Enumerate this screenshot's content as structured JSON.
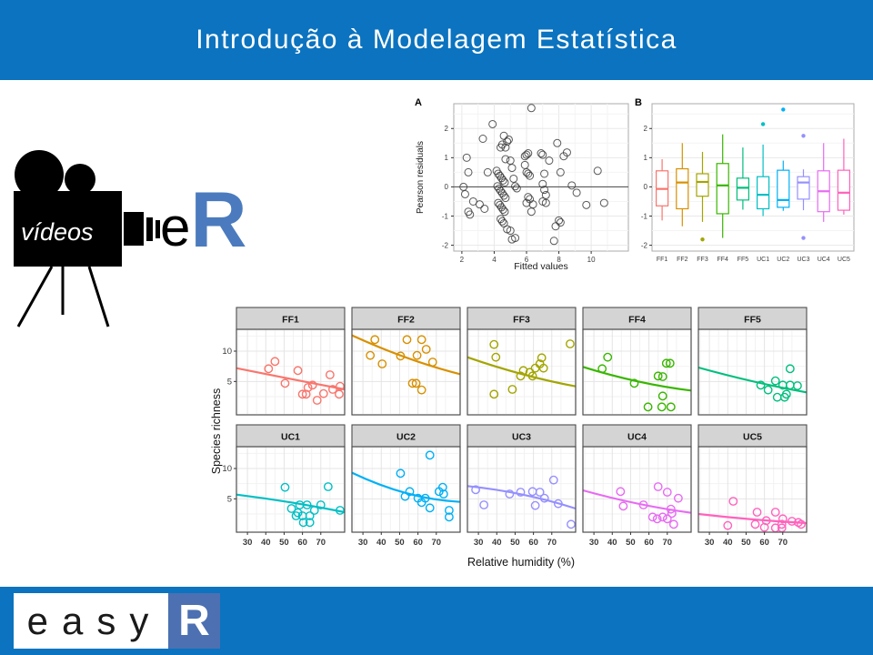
{
  "header": {
    "title": "Introdução à Modelagem Estatística"
  },
  "camera_logo": {
    "label": "vídeos"
  },
  "er_logo": {
    "e": "e",
    "r": "R"
  },
  "easyr_logo": {
    "letters": "easy",
    "r": "R"
  },
  "colors": {
    "band_blue": "#0B73BF",
    "er_r_blue": "#4B7BBE",
    "easyr_box_blue": "#4C70B2",
    "palette": [
      "#F8766D",
      "#D89000",
      "#A3A500",
      "#39B600",
      "#00BF7D",
      "#00BFC4",
      "#00B0F6",
      "#9590FF",
      "#E76BF3",
      "#FF62BC"
    ]
  },
  "chart_data": [
    {
      "id": "residuals_scatter",
      "type": "scatter",
      "panel_tag": "A",
      "xlabel": "Fitted values",
      "ylabel": "Pearson residuals",
      "xlim": [
        1.5,
        12.3
      ],
      "ylim": [
        -2.2,
        2.85
      ],
      "xticks": [
        2,
        4,
        6,
        8,
        10
      ],
      "yticks": [
        -2,
        -1,
        0,
        1,
        2
      ],
      "hline": 0,
      "point_color": "#3c3c3c",
      "grid": true,
      "points": [
        [
          2.1,
          0.0
        ],
        [
          2.2,
          -0.25
        ],
        [
          2.3,
          1.0
        ],
        [
          2.4,
          0.5
        ],
        [
          2.4,
          -0.85
        ],
        [
          2.5,
          -0.95
        ],
        [
          2.7,
          -0.5
        ],
        [
          3.1,
          -0.6
        ],
        [
          3.3,
          1.65
        ],
        [
          3.4,
          -0.75
        ],
        [
          3.6,
          0.5
        ],
        [
          3.9,
          2.15
        ],
        [
          4.15,
          0.55
        ],
        [
          4.25,
          0.45
        ],
        [
          4.35,
          0.38
        ],
        [
          4.45,
          0.3
        ],
        [
          4.55,
          0.22
        ],
        [
          4.65,
          0.15
        ],
        [
          4.2,
          0.02
        ],
        [
          4.3,
          -0.06
        ],
        [
          4.4,
          -0.14
        ],
        [
          4.5,
          -0.22
        ],
        [
          4.6,
          -0.3
        ],
        [
          4.7,
          -0.38
        ],
        [
          4.25,
          -0.55
        ],
        [
          4.35,
          -0.62
        ],
        [
          4.45,
          -0.7
        ],
        [
          4.55,
          -0.78
        ],
        [
          4.65,
          -0.85
        ],
        [
          4.4,
          -1.1
        ],
        [
          4.5,
          -1.18
        ],
        [
          4.6,
          -1.25
        ],
        [
          4.4,
          1.35
        ],
        [
          4.5,
          1.45
        ],
        [
          4.6,
          1.75
        ],
        [
          4.7,
          1.35
        ],
        [
          4.8,
          1.55
        ],
        [
          4.9,
          1.62
        ],
        [
          4.7,
          0.95
        ],
        [
          5.0,
          0.9
        ],
        [
          5.1,
          0.65
        ],
        [
          5.2,
          0.28
        ],
        [
          5.3,
          0.02
        ],
        [
          5.4,
          -0.05
        ],
        [
          4.8,
          -1.45
        ],
        [
          5.0,
          -1.5
        ],
        [
          5.1,
          -1.8
        ],
        [
          5.3,
          -1.75
        ],
        [
          5.9,
          1.05
        ],
        [
          6.0,
          1.1
        ],
        [
          6.1,
          1.15
        ],
        [
          5.9,
          0.75
        ],
        [
          6.0,
          0.5
        ],
        [
          6.1,
          0.45
        ],
        [
          6.2,
          0.38
        ],
        [
          6.3,
          2.7
        ],
        [
          6.1,
          -0.35
        ],
        [
          6.2,
          -0.42
        ],
        [
          6.0,
          -0.55
        ],
        [
          6.4,
          -0.6
        ],
        [
          6.3,
          -0.85
        ],
        [
          6.9,
          1.15
        ],
        [
          7.0,
          1.1
        ],
        [
          7.1,
          0.45
        ],
        [
          7.0,
          0.1
        ],
        [
          7.1,
          -0.1
        ],
        [
          7.2,
          -0.28
        ],
        [
          7.0,
          -0.5
        ],
        [
          7.2,
          -0.55
        ],
        [
          7.4,
          0.9
        ],
        [
          7.9,
          1.5
        ],
        [
          8.1,
          0.5
        ],
        [
          8.3,
          1.05
        ],
        [
          8.5,
          1.18
        ],
        [
          8.0,
          -1.15
        ],
        [
          8.1,
          -1.22
        ],
        [
          7.8,
          -1.35
        ],
        [
          7.7,
          -1.85
        ],
        [
          8.8,
          0.05
        ],
        [
          9.1,
          -0.2
        ],
        [
          9.7,
          -0.62
        ],
        [
          10.4,
          0.55
        ],
        [
          10.8,
          -0.55
        ]
      ]
    },
    {
      "id": "residuals_boxplot",
      "type": "boxplot",
      "panel_tag": "B",
      "ylim": [
        -2.2,
        2.85
      ],
      "yticks": [
        -2,
        -1,
        0,
        1,
        2
      ],
      "categories": [
        "FF1",
        "FF2",
        "FF3",
        "FF4",
        "FF5",
        "UC1",
        "UC2",
        "UC3",
        "UC4",
        "UC5"
      ],
      "colors": [
        "#F8766D",
        "#D89000",
        "#A3A500",
        "#39B600",
        "#00BF7D",
        "#00BFC4",
        "#00B0F6",
        "#9590FF",
        "#E76BF3",
        "#FF62BC"
      ],
      "boxes": [
        {
          "low": -1.15,
          "q1": -0.65,
          "median": -0.07,
          "q3": 0.55,
          "high": 0.95,
          "outliers": []
        },
        {
          "low": -1.35,
          "q1": -0.75,
          "median": 0.15,
          "q3": 0.62,
          "high": 1.5,
          "outliers": []
        },
        {
          "low": -1.2,
          "q1": -0.32,
          "median": 0.17,
          "q3": 0.45,
          "high": 1.2,
          "outliers": [
            -1.8
          ]
        },
        {
          "low": -1.75,
          "q1": -0.92,
          "median": 0.05,
          "q3": 0.8,
          "high": 1.8,
          "outliers": []
        },
        {
          "low": -0.78,
          "q1": -0.45,
          "median": -0.03,
          "q3": 0.3,
          "high": 1.35,
          "outliers": []
        },
        {
          "low": -1.0,
          "q1": -0.75,
          "median": -0.27,
          "q3": 0.35,
          "high": 1.45,
          "outliers": [
            2.15
          ]
        },
        {
          "low": -0.82,
          "q1": -0.7,
          "median": -0.45,
          "q3": 0.57,
          "high": 0.9,
          "outliers": [
            2.65
          ]
        },
        {
          "low": -0.8,
          "q1": -0.42,
          "median": 0.15,
          "q3": 0.35,
          "high": 0.6,
          "outliers": [
            1.75,
            -1.75
          ]
        },
        {
          "low": -1.2,
          "q1": -0.85,
          "median": -0.15,
          "q3": 0.55,
          "high": 1.5,
          "outliers": []
        },
        {
          "low": -0.95,
          "q1": -0.8,
          "median": -0.2,
          "q3": 0.57,
          "high": 1.65,
          "outliers": []
        }
      ]
    },
    {
      "id": "facet_scatter",
      "type": "facet-scatter",
      "xlabel": "Relative humidity (%)",
      "ylabel": "Species richness",
      "xlim": [
        24,
        83
      ],
      "ylim": [
        -0.5,
        13.6
      ],
      "xticks": [
        30,
        40,
        50,
        60,
        70
      ],
      "yticks": [
        5,
        10
      ],
      "facets": [
        {
          "label": "FF1",
          "color": "#F8766D",
          "points": [
            [
              41.5,
              7.1
            ],
            [
              45,
              8.3
            ],
            [
              50.5,
              4.7
            ],
            [
              57.5,
              6.8
            ],
            [
              60,
              2.9
            ],
            [
              62,
              2.9
            ],
            [
              63,
              4.0
            ],
            [
              65.5,
              4.4
            ],
            [
              68,
              1.9
            ],
            [
              71.5,
              3.0
            ],
            [
              75,
              6.1
            ],
            [
              76.5,
              3.7
            ],
            [
              80,
              2.9
            ],
            [
              80.5,
              4.2
            ]
          ],
          "trend": [
            [
              24,
              7.2
            ],
            [
              54,
              5.4
            ],
            [
              83,
              3.7
            ]
          ]
        },
        {
          "label": "FF2",
          "color": "#D89000",
          "points": [
            [
              34,
              9.3
            ],
            [
              36.5,
              11.9
            ],
            [
              40.5,
              7.9
            ],
            [
              50.5,
              9.2
            ],
            [
              54,
              11.9
            ],
            [
              57,
              4.7
            ],
            [
              59,
              4.7
            ],
            [
              59.5,
              9.3
            ],
            [
              62,
              11.9
            ],
            [
              62,
              3.6
            ],
            [
              64.5,
              10.3
            ],
            [
              68,
              8.2
            ]
          ],
          "trend": [
            [
              24,
              12.6
            ],
            [
              54,
              8.9
            ],
            [
              83,
              6.2
            ]
          ]
        },
        {
          "label": "FF3",
          "color": "#A3A500",
          "points": [
            [
              38.5,
              11.1
            ],
            [
              39.5,
              9.0
            ],
            [
              38.5,
              2.9
            ],
            [
              48.5,
              3.7
            ],
            [
              53,
              5.9
            ],
            [
              54.5,
              6.8
            ],
            [
              58,
              6.5
            ],
            [
              59.5,
              5.9
            ],
            [
              61,
              7.2
            ],
            [
              63.5,
              7.9
            ],
            [
              64.5,
              8.9
            ],
            [
              65.5,
              7.2
            ],
            [
              80,
              11.2
            ]
          ],
          "trend": [
            [
              24,
              9.0
            ],
            [
              54,
              6.2
            ],
            [
              83,
              4.2
            ]
          ]
        },
        {
          "label": "FF4",
          "color": "#39B600",
          "points": [
            [
              34.5,
              7.1
            ],
            [
              37.5,
              9.0
            ],
            [
              52,
              4.7
            ],
            [
              59.5,
              0.8
            ],
            [
              65,
              5.9
            ],
            [
              67.5,
              5.8
            ],
            [
              67,
              0.8
            ],
            [
              67.5,
              2.6
            ],
            [
              69.5,
              8.0
            ],
            [
              71.5,
              8.0
            ],
            [
              72,
              0.8
            ]
          ],
          "trend": [
            [
              24,
              7.4
            ],
            [
              54,
              5.0
            ],
            [
              83,
              3.5
            ]
          ]
        },
        {
          "label": "FF5",
          "color": "#00BF7D",
          "points": [
            [
              58,
              4.4
            ],
            [
              62,
              3.6
            ],
            [
              66,
              5.1
            ],
            [
              67,
              2.4
            ],
            [
              70,
              4.4
            ],
            [
              71,
              2.4
            ],
            [
              72,
              2.9
            ],
            [
              74,
              4.4
            ],
            [
              74,
              7.1
            ],
            [
              78,
              4.3
            ]
          ],
          "trend": [
            [
              24,
              7.3
            ],
            [
              54,
              5.0
            ],
            [
              83,
              3.2
            ]
          ]
        },
        {
          "label": "UC1",
          "color": "#00BFC4",
          "points": [
            [
              50.5,
              6.9
            ],
            [
              54,
              3.4
            ],
            [
              56.5,
              2.2
            ],
            [
              57.5,
              2.7
            ],
            [
              58.5,
              4.0
            ],
            [
              60,
              2.2
            ],
            [
              60.5,
              1.1
            ],
            [
              62.5,
              4.0
            ],
            [
              64,
              2.2
            ],
            [
              64,
              1.1
            ],
            [
              66.5,
              3.1
            ],
            [
              70,
              4.0
            ],
            [
              74,
              7.0
            ],
            [
              80.5,
              3.1
            ]
          ],
          "trend": [
            [
              24,
              5.7
            ],
            [
              54,
              4.4
            ],
            [
              83,
              2.8
            ]
          ]
        },
        {
          "label": "UC2",
          "color": "#00B0F6",
          "points": [
            [
              50.5,
              9.2
            ],
            [
              53,
              5.4
            ],
            [
              55.5,
              6.2
            ],
            [
              60,
              5.1
            ],
            [
              62,
              4.4
            ],
            [
              64,
              5.1
            ],
            [
              66.5,
              12.2
            ],
            [
              66.5,
              3.5
            ],
            [
              71.5,
              6.2
            ],
            [
              73.5,
              6.9
            ],
            [
              74,
              5.8
            ],
            [
              77,
              3.1
            ],
            [
              77,
              2.0
            ]
          ],
          "trend": [
            [
              24,
              9.3
            ],
            [
              54,
              5.9
            ],
            [
              83,
              4.5
            ]
          ]
        },
        {
          "label": "UC3",
          "color": "#9590FF",
          "points": [
            [
              28.5,
              6.5
            ],
            [
              33,
              4.0
            ],
            [
              47,
              5.8
            ],
            [
              53,
              6.1
            ],
            [
              59.5,
              6.2
            ],
            [
              61,
              3.9
            ],
            [
              63.5,
              6.1
            ],
            [
              66,
              5.1
            ],
            [
              71,
              8.1
            ],
            [
              73.5,
              4.2
            ],
            [
              80.5,
              0.8
            ]
          ],
          "trend": [
            [
              24,
              7.1
            ],
            [
              54,
              5.7
            ],
            [
              83,
              3.4
            ]
          ]
        },
        {
          "label": "UC4",
          "color": "#E76BF3",
          "points": [
            [
              44.5,
              6.2
            ],
            [
              46,
              3.8
            ],
            [
              57,
              4.0
            ],
            [
              62,
              2.0
            ],
            [
              64.5,
              1.7
            ],
            [
              65,
              7.0
            ],
            [
              67.5,
              2.0
            ],
            [
              70,
              6.1
            ],
            [
              70,
              1.7
            ],
            [
              72,
              3.3
            ],
            [
              72.5,
              2.6
            ],
            [
              73.5,
              0.8
            ],
            [
              76,
              5.1
            ]
          ],
          "trend": [
            [
              24,
              6.4
            ],
            [
              54,
              4.2
            ],
            [
              83,
              2.7
            ]
          ]
        },
        {
          "label": "UC5",
          "color": "#FF62BC",
          "points": [
            [
              40,
              0.6
            ],
            [
              43,
              4.6
            ],
            [
              55,
              0.8
            ],
            [
              56,
              2.8
            ],
            [
              60,
              0.3
            ],
            [
              61,
              1.4
            ],
            [
              66,
              2.8
            ],
            [
              66,
              0.2
            ],
            [
              69.5,
              0.8
            ],
            [
              69.5,
              0.2
            ],
            [
              70,
              1.7
            ],
            [
              75,
              1.3
            ],
            [
              78.5,
              1.1
            ],
            [
              80,
              0.8
            ]
          ],
          "trend": [
            [
              24,
              2.5
            ],
            [
              54,
              1.6
            ],
            [
              83,
              1.0
            ]
          ]
        }
      ]
    }
  ]
}
